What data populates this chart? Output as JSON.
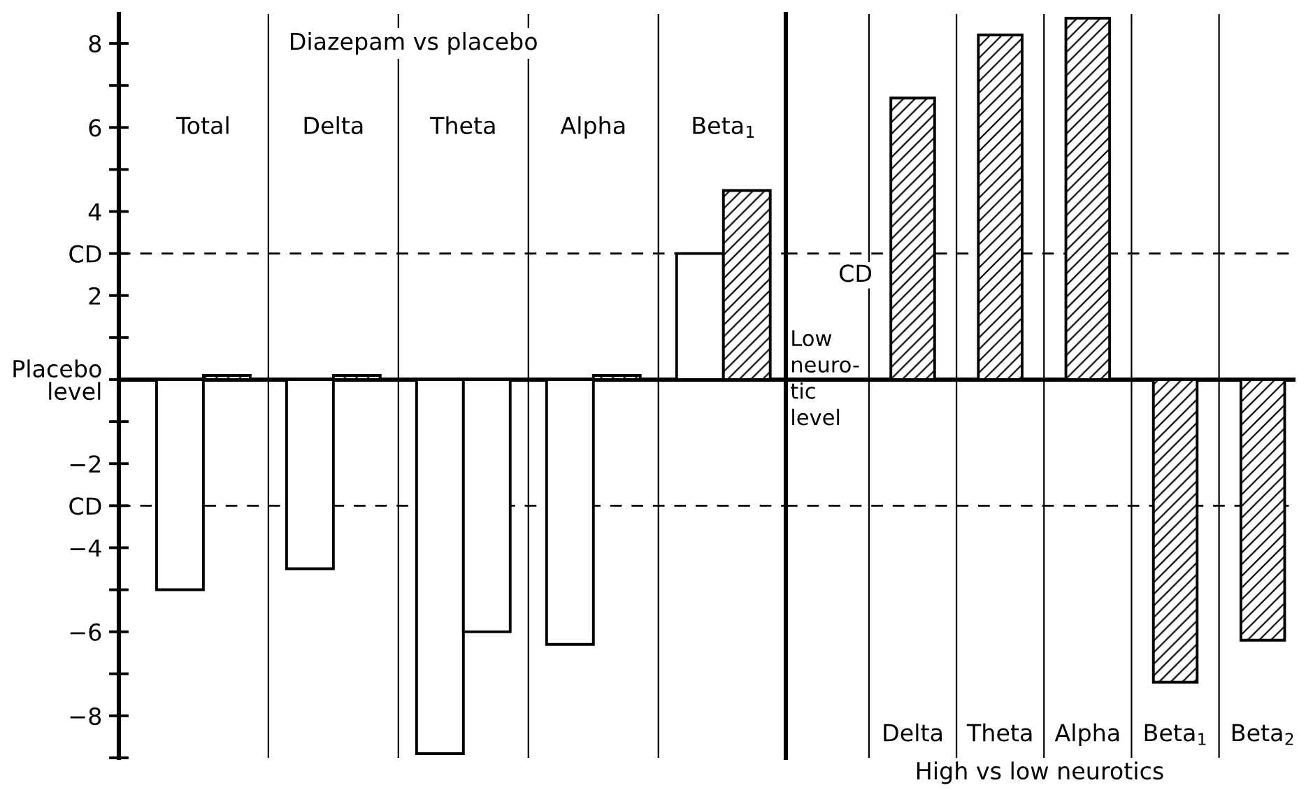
{
  "chart_data": [
    {
      "type": "bar",
      "title": "Diazepam vs placebo",
      "categories": [
        "Total",
        "Delta",
        "Theta",
        "Alpha",
        "Beta$_{1}$"
      ],
      "series": [
        {
          "color": "#ffffff",
          "values": [
            -5.0,
            -4.5,
            -8.9,
            -6.3,
            3.0
          ]
        },
        {
          "colors": [
            "#000000",
            "#000000",
            "#ffffff",
            "#000000",
            "#000000"
          ],
          "values": [
            0.1,
            0.1,
            -6.0,
            0.1,
            4.5
          ]
        }
      ],
      "ylim": [
        -9,
        8.7
      ],
      "yticks": [
        {
          "value": -9,
          "label": null
        },
        {
          "value": -8,
          "label": "−8"
        },
        {
          "value": -7,
          "label": null
        },
        {
          "value": -6,
          "label": "−6"
        },
        {
          "value": -5,
          "label": null
        },
        {
          "value": -4,
          "label": "−4"
        },
        {
          "value": -3,
          "label": "CD"
        },
        {
          "value": -2,
          "label": "−2"
        },
        {
          "value": -1,
          "label": null
        },
        {
          "value": 0,
          "label": "Placebo\nlevel"
        },
        {
          "value": 1,
          "label": null
        },
        2,
        {
          "value": 3,
          "label": "CD"
        },
        4,
        {
          "value": 5,
          "label": null
        },
        6,
        {
          "value": 7,
          "label": null
        },
        8
      ],
      "ref_lines": [
        {
          "axis": "y",
          "value": 3,
          "line_style": "dashed"
        },
        {
          "axis": "y",
          "value": -3,
          "line_style": "dashed"
        }
      ],
      "grid": "x"
    },
    {
      "type": "bar",
      "xlabel": "High vs low neurotics",
      "categories": [
        "Delta",
        "Theta",
        "Alpha",
        "Beta$_{1}$",
        "Beta$_{2}$"
      ],
      "series": [
        {
          "color": "#000000",
          "values": [
            6.7,
            8.2,
            8.6,
            -7.2,
            -6.2
          ]
        }
      ],
      "ylim": [
        -9,
        8.7
      ],
      "tick_labels": "x",
      "ref_lines": [
        {
          "axis": "y",
          "value": 3,
          "label": "CD",
          "line_style": "dashed"
        },
        {
          "axis": "y",
          "value": -3,
          "line_style": "dashed"
        },
        {
          "axis": "y",
          "value": 0,
          "label": "Low\nneuro-\ntic\nlevel",
          "line_style": "solid"
        }
      ],
      "grid": "x"
    }
  ]
}
